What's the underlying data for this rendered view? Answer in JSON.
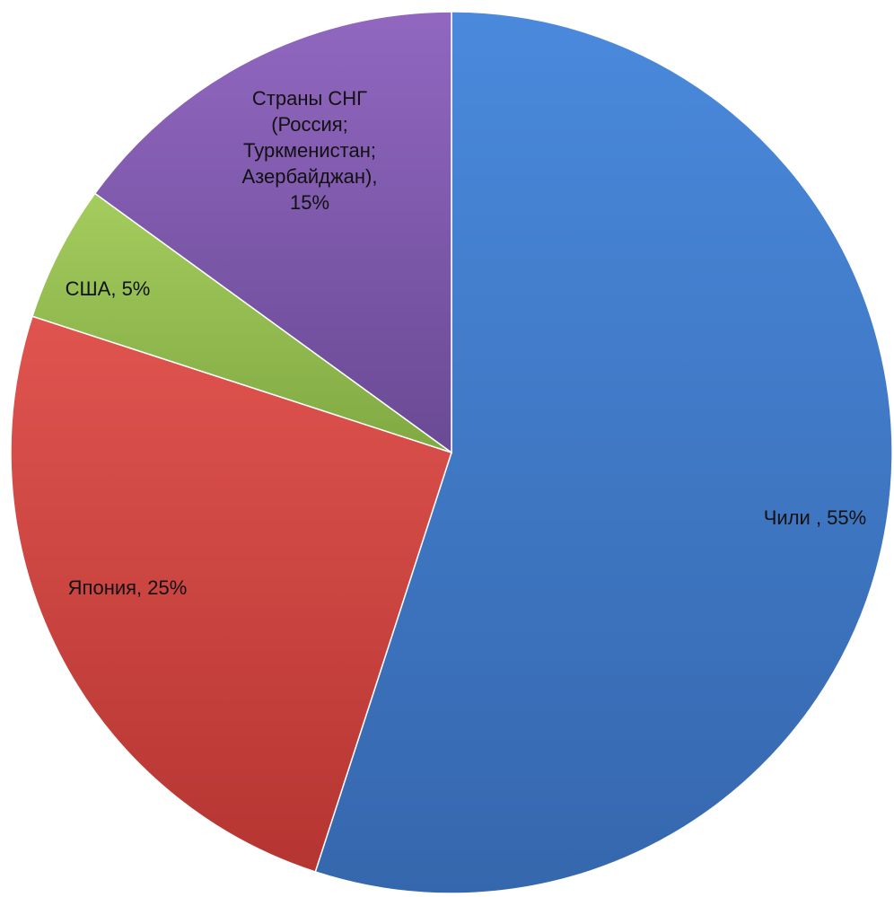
{
  "chart_data": {
    "type": "pie",
    "title": "",
    "start_angle_deg": 0,
    "direction": "clockwise",
    "slices": [
      {
        "name": "Чили",
        "value": 55,
        "color": "#3f7ac9",
        "label_lines": [
          "Чили , 55%"
        ]
      },
      {
        "name": "Япония",
        "value": 25,
        "color": "#d04440",
        "label_lines": [
          "Япония, 25%"
        ]
      },
      {
        "name": "США",
        "value": 5,
        "color": "#93bd4f",
        "label_lines": [
          "США, 5%"
        ]
      },
      {
        "name": "Страны СНГ (Россия; Туркменистан; Азербайджан)",
        "value": 15,
        "color": "#7d5aa8",
        "label_lines": [
          "Страны СНГ",
          "(Россия;",
          "Туркменистан;",
          "Азербайджан),",
          "15%"
        ]
      }
    ]
  }
}
